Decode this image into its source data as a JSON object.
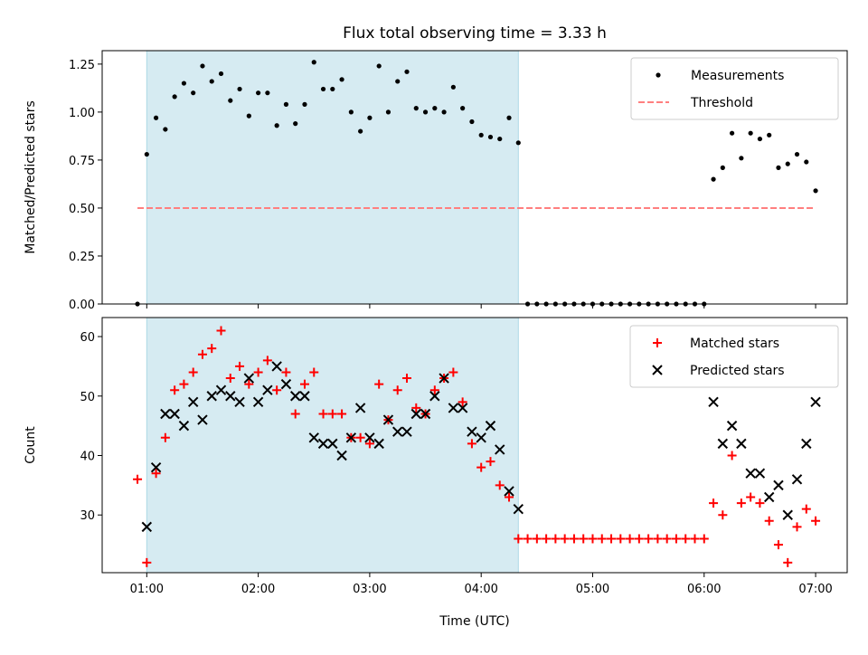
{
  "title": "Flux total observing time = 3.33 h",
  "colors": {
    "shade": "#add8e6",
    "threshold": "#ff7f7f",
    "matched": "#ff0000",
    "predicted": "#000000",
    "measurement": "#000000"
  },
  "chart_data": [
    {
      "type": "scatter",
      "panel": "top",
      "ylabel": "Matched/Predicted stars",
      "xlabel": "",
      "xlim": [
        "00:36",
        "07:17"
      ],
      "ylim": [
        0,
        1.32
      ],
      "yticks": [
        0,
        0.25,
        0.5,
        0.75,
        1.0,
        1.25
      ],
      "ytick_labels": [
        "0.00",
        "0.25",
        "0.50",
        "0.75",
        "1.00",
        "1.25"
      ],
      "xticks": [
        "01:00",
        "02:00",
        "03:00",
        "04:00",
        "05:00",
        "06:00",
        "07:00"
      ],
      "shaded_interval": [
        "01:00",
        "04:20"
      ],
      "legend": {
        "position": "top-right",
        "entries": [
          "Measurements",
          "Threshold"
        ]
      },
      "threshold": {
        "name": "Threshold",
        "value": 0.5,
        "x_range": [
          "00:55",
          "07:00"
        ]
      },
      "series": [
        {
          "name": "Measurements",
          "marker": "dot",
          "x": [
            "00:55",
            "01:00",
            "01:05",
            "01:10",
            "01:15",
            "01:20",
            "01:25",
            "01:30",
            "01:35",
            "01:40",
            "01:45",
            "01:50",
            "01:55",
            "02:00",
            "02:05",
            "02:10",
            "02:15",
            "02:20",
            "02:25",
            "02:30",
            "02:35",
            "02:40",
            "02:45",
            "02:50",
            "02:55",
            "03:00",
            "03:05",
            "03:10",
            "03:15",
            "03:20",
            "03:25",
            "03:30",
            "03:35",
            "03:40",
            "03:45",
            "03:50",
            "03:55",
            "04:00",
            "04:05",
            "04:10",
            "04:15",
            "04:20",
            "04:25",
            "04:30",
            "04:35",
            "04:40",
            "04:45",
            "04:50",
            "04:55",
            "05:00",
            "05:05",
            "05:10",
            "05:15",
            "05:20",
            "05:25",
            "05:30",
            "05:35",
            "05:40",
            "05:45",
            "05:50",
            "05:55",
            "06:00",
            "06:05",
            "06:10",
            "06:15",
            "06:20",
            "06:25",
            "06:30",
            "06:35",
            "06:40",
            "06:45",
            "06:50",
            "06:55",
            "07:00"
          ],
          "y": [
            0,
            0.78,
            0.97,
            0.91,
            1.08,
            1.15,
            1.1,
            1.24,
            1.16,
            1.2,
            1.06,
            1.12,
            0.98,
            1.1,
            1.1,
            0.93,
            1.04,
            0.94,
            1.04,
            1.26,
            1.12,
            1.12,
            1.17,
            1.0,
            0.9,
            0.97,
            1.24,
            1.0,
            1.16,
            1.21,
            1.02,
            1.0,
            1.02,
            1.0,
            1.13,
            1.02,
            0.95,
            0.88,
            0.87,
            0.86,
            0.97,
            0.84,
            0,
            0,
            0,
            0,
            0,
            0,
            0,
            0,
            0,
            0,
            0,
            0,
            0,
            0,
            0,
            0,
            0,
            0,
            0,
            0,
            0.65,
            0.71,
            0.89,
            0.76,
            0.89,
            0.86,
            0.88,
            0.71,
            0.73,
            0.78,
            0.74,
            0.59
          ]
        }
      ]
    },
    {
      "type": "scatter",
      "panel": "bottom",
      "ylabel": "Count",
      "xlabel": "Time (UTC)",
      "xlim": [
        "00:36",
        "07:17"
      ],
      "ylim": [
        20.3,
        63.2
      ],
      "yticks": [
        30,
        40,
        50,
        60
      ],
      "ytick_labels": [
        "30",
        "40",
        "50",
        "60"
      ],
      "xticks": [
        "01:00",
        "02:00",
        "03:00",
        "04:00",
        "05:00",
        "06:00",
        "07:00"
      ],
      "shaded_interval": [
        "01:00",
        "04:20"
      ],
      "legend": {
        "position": "top-right",
        "entries": [
          "Matched stars",
          "Predicted stars"
        ]
      },
      "series": [
        {
          "name": "Matched stars",
          "marker": "plus",
          "x": [
            "00:55",
            "01:00",
            "01:05",
            "01:10",
            "01:15",
            "01:20",
            "01:25",
            "01:30",
            "01:35",
            "01:40",
            "01:45",
            "01:50",
            "01:55",
            "02:00",
            "02:05",
            "02:10",
            "02:15",
            "02:20",
            "02:25",
            "02:30",
            "02:35",
            "02:40",
            "02:45",
            "02:50",
            "02:55",
            "03:00",
            "03:05",
            "03:10",
            "03:15",
            "03:20",
            "03:25",
            "03:30",
            "03:35",
            "03:40",
            "03:45",
            "03:50",
            "03:55",
            "04:00",
            "04:05",
            "04:10",
            "04:15",
            "04:20",
            "04:25",
            "04:30",
            "04:35",
            "04:40",
            "04:45",
            "04:50",
            "04:55",
            "05:00",
            "05:05",
            "05:10",
            "05:15",
            "05:20",
            "05:25",
            "05:30",
            "05:35",
            "05:40",
            "05:45",
            "05:50",
            "05:55",
            "06:00",
            "06:05",
            "06:10",
            "06:15",
            "06:20",
            "06:25",
            "06:30",
            "06:35",
            "06:40",
            "06:45",
            "06:50",
            "06:55",
            "07:00"
          ],
          "y": [
            36,
            22,
            37,
            43,
            51,
            52,
            54,
            57,
            58,
            61,
            53,
            55,
            52,
            54,
            56,
            51,
            54,
            47,
            52,
            54,
            47,
            47,
            47,
            43,
            43,
            42,
            52,
            46,
            51,
            53,
            48,
            47,
            51,
            53,
            54,
            49,
            42,
            38,
            39,
            35,
            33,
            26,
            26,
            26,
            26,
            26,
            26,
            26,
            26,
            26,
            26,
            26,
            26,
            26,
            26,
            26,
            26,
            26,
            26,
            26,
            26,
            26,
            32,
            30,
            40,
            32,
            33,
            32,
            29,
            25,
            22,
            28,
            31,
            29
          ]
        },
        {
          "name": "Predicted stars",
          "marker": "x",
          "x": [
            "01:00",
            "01:05",
            "01:10",
            "01:15",
            "01:20",
            "01:25",
            "01:30",
            "01:35",
            "01:40",
            "01:45",
            "01:50",
            "01:55",
            "02:00",
            "02:05",
            "02:10",
            "02:15",
            "02:20",
            "02:25",
            "02:30",
            "02:35",
            "02:40",
            "02:45",
            "02:50",
            "02:55",
            "03:00",
            "03:05",
            "03:10",
            "03:15",
            "03:20",
            "03:25",
            "03:30",
            "03:35",
            "03:40",
            "03:45",
            "03:50",
            "03:55",
            "04:00",
            "04:05",
            "04:10",
            "04:15",
            "04:20",
            "06:05",
            "06:10",
            "06:15",
            "06:20",
            "06:25",
            "06:30",
            "06:35",
            "06:40",
            "06:45",
            "06:50",
            "06:55",
            "07:00"
          ],
          "y": [
            28,
            38,
            47,
            47,
            45,
            49,
            46,
            50,
            51,
            50,
            49,
            53,
            49,
            51,
            55,
            52,
            50,
            50,
            43,
            42,
            42,
            40,
            43,
            48,
            43,
            42,
            46,
            44,
            44,
            47,
            47,
            50,
            53,
            48,
            48,
            44,
            43,
            45,
            41,
            34,
            31,
            49,
            42,
            45,
            42,
            37,
            37,
            33,
            35,
            30,
            36,
            42,
            49
          ]
        }
      ]
    }
  ]
}
